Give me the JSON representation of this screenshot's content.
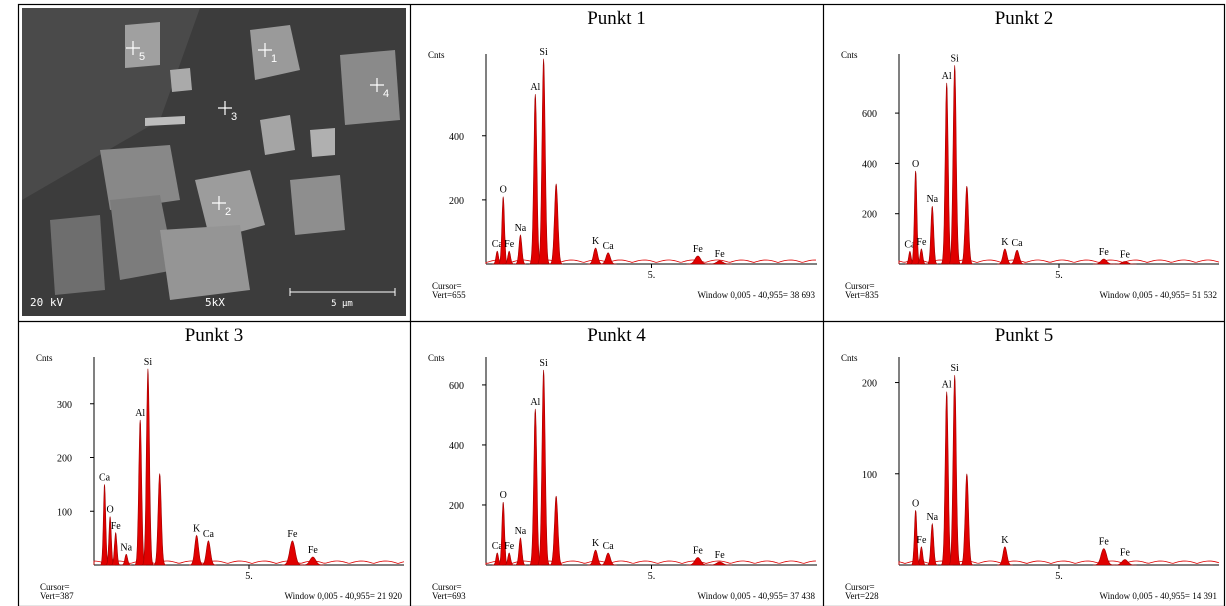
{
  "sem": {
    "voltage": "20 kV",
    "magnification": "5kX",
    "scale": "5 µm",
    "points": [
      "1",
      "2",
      "3",
      "4",
      "5"
    ]
  },
  "spectra": [
    {
      "title": "Punkt 1",
      "y_label": "Cnts",
      "ylim": [
        0,
        655
      ],
      "yticks": [
        200,
        400
      ],
      "xlim": [
        0,
        10
      ],
      "xticks": [
        {
          "value": 5,
          "label": "5."
        }
      ],
      "cursor": "Cursor=",
      "vert": "Vert=655",
      "window": "Window 0,005 - 40,955= 38 693",
      "peaks": [
        {
          "element": "Ca",
          "kev": 0.34,
          "counts": 40
        },
        {
          "element": "O",
          "kev": 0.52,
          "counts": 210
        },
        {
          "element": "Fe",
          "kev": 0.7,
          "counts": 40
        },
        {
          "element": "Na",
          "kev": 1.04,
          "counts": 90
        },
        {
          "element": "Al",
          "kev": 1.49,
          "counts": 530
        },
        {
          "element": "Si",
          "kev": 1.74,
          "counts": 640
        },
        {
          "element": null,
          "kev": 2.12,
          "counts": 250
        },
        {
          "element": "K",
          "kev": 3.31,
          "counts": 50
        },
        {
          "element": "Ca",
          "kev": 3.69,
          "counts": 35
        },
        {
          "element": "Fe",
          "kev": 6.4,
          "counts": 25
        },
        {
          "element": "Fe",
          "kev": 7.06,
          "counts": 10
        }
      ]
    },
    {
      "title": "Punkt 2",
      "y_label": "Cnts",
      "ylim": [
        0,
        835
      ],
      "yticks": [
        200,
        400,
        600
      ],
      "xlim": [
        0,
        10
      ],
      "xticks": [
        {
          "value": 5,
          "label": "5."
        }
      ],
      "cursor": "Cursor=",
      "vert": "Vert=835",
      "window": "Window 0,005 - 40,955= 51 532",
      "peaks": [
        {
          "element": "Ca",
          "kev": 0.34,
          "counts": 50
        },
        {
          "element": "O",
          "kev": 0.52,
          "counts": 370
        },
        {
          "element": "Fe",
          "kev": 0.7,
          "counts": 60
        },
        {
          "element": "Na",
          "kev": 1.04,
          "counts": 230
        },
        {
          "element": "Al",
          "kev": 1.49,
          "counts": 720
        },
        {
          "element": "Si",
          "kev": 1.74,
          "counts": 790
        },
        {
          "element": null,
          "kev": 2.12,
          "counts": 310
        },
        {
          "element": "K",
          "kev": 3.31,
          "counts": 60
        },
        {
          "element": "Ca",
          "kev": 3.69,
          "counts": 55
        },
        {
          "element": "Fe",
          "kev": 6.4,
          "counts": 20
        },
        {
          "element": "Fe",
          "kev": 7.06,
          "counts": 10
        }
      ]
    },
    {
      "title": "Punkt 3",
      "y_label": "Cnts",
      "ylim": [
        0,
        387
      ],
      "yticks": [
        100,
        200,
        300
      ],
      "xlim": [
        0,
        10
      ],
      "xticks": [
        {
          "value": 5,
          "label": "5."
        }
      ],
      "cursor": "Cursor=",
      "vert": "Vert=387",
      "window": "Window 0,005 - 40,955= 21 920",
      "peaks": [
        {
          "element": "Ca",
          "kev": 0.34,
          "counts": 150
        },
        {
          "element": "O",
          "kev": 0.52,
          "counts": 90
        },
        {
          "element": "Fe",
          "kev": 0.7,
          "counts": 60
        },
        {
          "element": "Na",
          "kev": 1.04,
          "counts": 20
        },
        {
          "element": "Al",
          "kev": 1.49,
          "counts": 270
        },
        {
          "element": "Si",
          "kev": 1.74,
          "counts": 365
        },
        {
          "element": null,
          "kev": 2.12,
          "counts": 170
        },
        {
          "element": "K",
          "kev": 3.31,
          "counts": 55
        },
        {
          "element": "Ca",
          "kev": 3.69,
          "counts": 45
        },
        {
          "element": "Fe",
          "kev": 6.4,
          "counts": 45
        },
        {
          "element": "Fe",
          "kev": 7.06,
          "counts": 15
        }
      ]
    },
    {
      "title": "Punkt 4",
      "y_label": "Cnts",
      "ylim": [
        0,
        693
      ],
      "yticks": [
        200,
        400,
        600
      ],
      "xlim": [
        0,
        10
      ],
      "xticks": [
        {
          "value": 5,
          "label": "5."
        }
      ],
      "cursor": "Cursor=",
      "vert": "Vert=693",
      "window": "Window 0,005 - 40,955= 37 438",
      "peaks": [
        {
          "element": "Ca",
          "kev": 0.34,
          "counts": 40
        },
        {
          "element": "O",
          "kev": 0.52,
          "counts": 210
        },
        {
          "element": "Fe",
          "kev": 0.7,
          "counts": 40
        },
        {
          "element": "Na",
          "kev": 1.04,
          "counts": 90
        },
        {
          "element": "Al",
          "kev": 1.49,
          "counts": 520
        },
        {
          "element": "Si",
          "kev": 1.74,
          "counts": 650
        },
        {
          "element": null,
          "kev": 2.12,
          "counts": 230
        },
        {
          "element": "K",
          "kev": 3.31,
          "counts": 50
        },
        {
          "element": "Ca",
          "kev": 3.69,
          "counts": 40
        },
        {
          "element": "Fe",
          "kev": 6.4,
          "counts": 25
        },
        {
          "element": "Fe",
          "kev": 7.06,
          "counts": 10
        }
      ]
    },
    {
      "title": "Punkt 5",
      "y_label": "Cnts",
      "ylim": [
        0,
        228
      ],
      "yticks": [
        100,
        200
      ],
      "xlim": [
        0,
        10
      ],
      "xticks": [
        {
          "value": 5,
          "label": "5."
        }
      ],
      "cursor": "Cursor=",
      "vert": "Vert=228",
      "window": "Window 0,005 - 40,955= 14 391",
      "peaks": [
        {
          "element": "Fe",
          "kev": 0.7,
          "counts": 20
        },
        {
          "element": "O",
          "kev": 0.52,
          "counts": 60
        },
        {
          "element": "Na",
          "kev": 1.04,
          "counts": 45
        },
        {
          "element": "Al",
          "kev": 1.49,
          "counts": 190
        },
        {
          "element": "Si",
          "kev": 1.74,
          "counts": 208
        },
        {
          "element": null,
          "kev": 2.12,
          "counts": 100
        },
        {
          "element": "K",
          "kev": 3.31,
          "counts": 20
        },
        {
          "element": "Fe",
          "kev": 6.4,
          "counts": 18
        },
        {
          "element": "Fe",
          "kev": 7.06,
          "counts": 6
        }
      ]
    }
  ]
}
